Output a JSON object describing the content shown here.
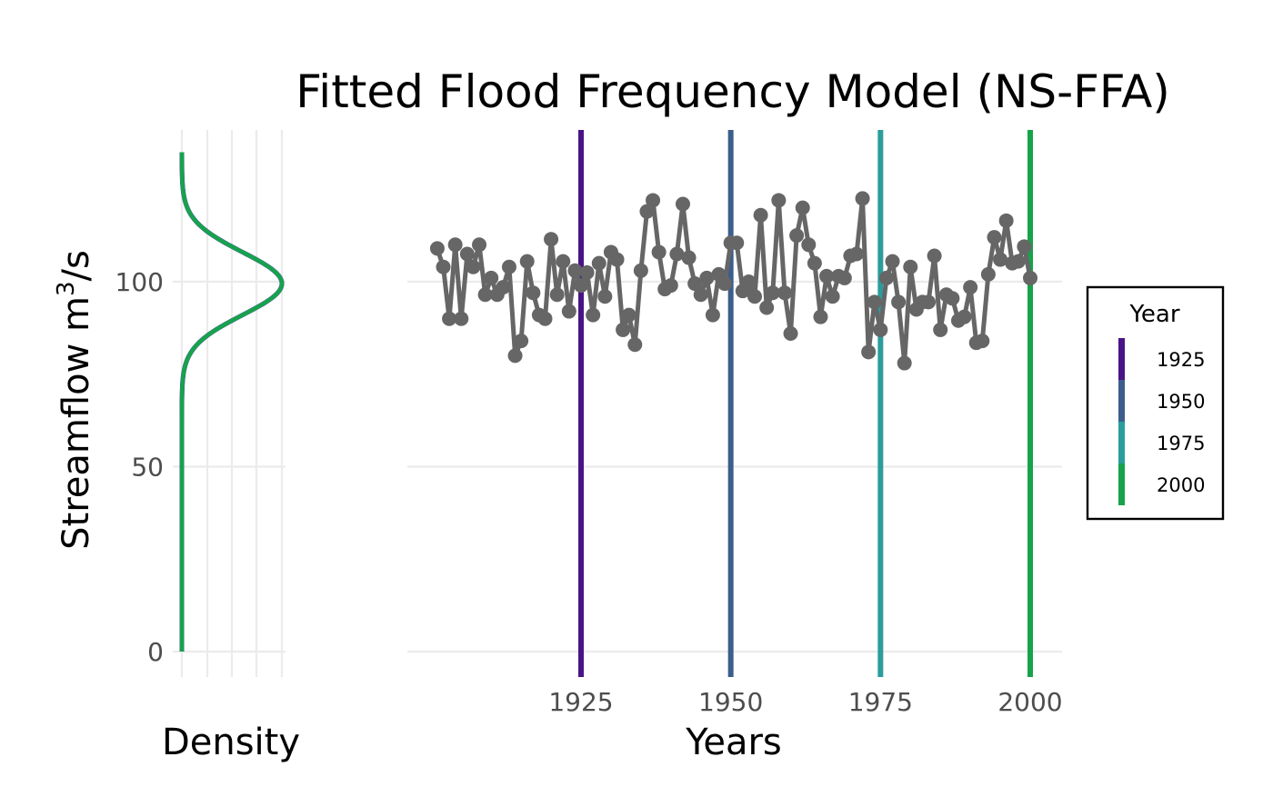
{
  "chart_data": {
    "type": "line",
    "title": "Fitted Flood Frequency Model (NS-FFA)",
    "ylabel": "Streamflow m",
    "ylabel_superscript": "3",
    "ylabel_suffix": "/s",
    "ylim": [
      0,
      135
    ],
    "yticks": [
      0,
      50,
      100
    ],
    "density_panel": {
      "xlabel": "Density",
      "distribution": "normal",
      "mean": 99.5,
      "sd": 8.5,
      "curves": [
        {
          "name": "1925",
          "color": "#4a1486"
        },
        {
          "name": "1950",
          "color": "#3b5e8c"
        },
        {
          "name": "1975",
          "color": "#2a9d9d"
        },
        {
          "name": "2000",
          "color": "#16a34a"
        }
      ]
    },
    "series_panel": {
      "xlabel": "Years",
      "xlim": [
        1899,
        2004
      ],
      "xticks": [
        1925,
        1950,
        1975,
        2000
      ],
      "line_color": "#666666",
      "x": [
        1901,
        1902,
        1903,
        1904,
        1905,
        1906,
        1907,
        1908,
        1909,
        1910,
        1911,
        1912,
        1913,
        1914,
        1915,
        1916,
        1917,
        1918,
        1919,
        1920,
        1921,
        1922,
        1923,
        1924,
        1925,
        1926,
        1927,
        1928,
        1929,
        1930,
        1931,
        1932,
        1933,
        1934,
        1935,
        1936,
        1937,
        1938,
        1939,
        1940,
        1941,
        1942,
        1943,
        1944,
        1945,
        1946,
        1947,
        1948,
        1949,
        1950,
        1951,
        1952,
        1953,
        1954,
        1955,
        1956,
        1957,
        1958,
        1959,
        1960,
        1961,
        1962,
        1963,
        1964,
        1965,
        1966,
        1967,
        1968,
        1969,
        1970,
        1971,
        1972,
        1973,
        1974,
        1975,
        1976,
        1977,
        1978,
        1979,
        1980,
        1981,
        1982,
        1983,
        1984,
        1985,
        1986,
        1987,
        1988,
        1989,
        1990,
        1991,
        1992,
        1993,
        1994,
        1995,
        1996,
        1997,
        1998,
        1999,
        2000
      ],
      "y": [
        109,
        104,
        90,
        110,
        90,
        107.5,
        104,
        110,
        96.5,
        101,
        96.5,
        98.5,
        104,
        80,
        84,
        105.5,
        97,
        91,
        90,
        111.5,
        96.5,
        105.5,
        92,
        103,
        99,
        102.5,
        91,
        105,
        96,
        108,
        106,
        87,
        91,
        83,
        103,
        119,
        122,
        108,
        98,
        99,
        107.5,
        121,
        106.5,
        99.5,
        96.5,
        101,
        91,
        102,
        99.5,
        110.5,
        110.5,
        97.5,
        100,
        96,
        118,
        93,
        97,
        122,
        97,
        86,
        112.5,
        120,
        110,
        105,
        90.5,
        101.5,
        96,
        101.5,
        101,
        107,
        107.5,
        122.5,
        81,
        94.5,
        87,
        101,
        105.5,
        94.5,
        78,
        104,
        92.5,
        94.5,
        94.5,
        107,
        87,
        96.5,
        95.5,
        89.5,
        90.5,
        98.5,
        83.5,
        84,
        102,
        112,
        106,
        116.5,
        105,
        105.5,
        109.5,
        101
      ]
    },
    "legend": {
      "title": "Year",
      "position": "right",
      "items": [
        {
          "label": "1925",
          "color": "#4a1486"
        },
        {
          "label": "1950",
          "color": "#3b5e8c"
        },
        {
          "label": "1975",
          "color": "#2a9d9d"
        },
        {
          "label": "2000",
          "color": "#16a34a"
        }
      ]
    }
  }
}
